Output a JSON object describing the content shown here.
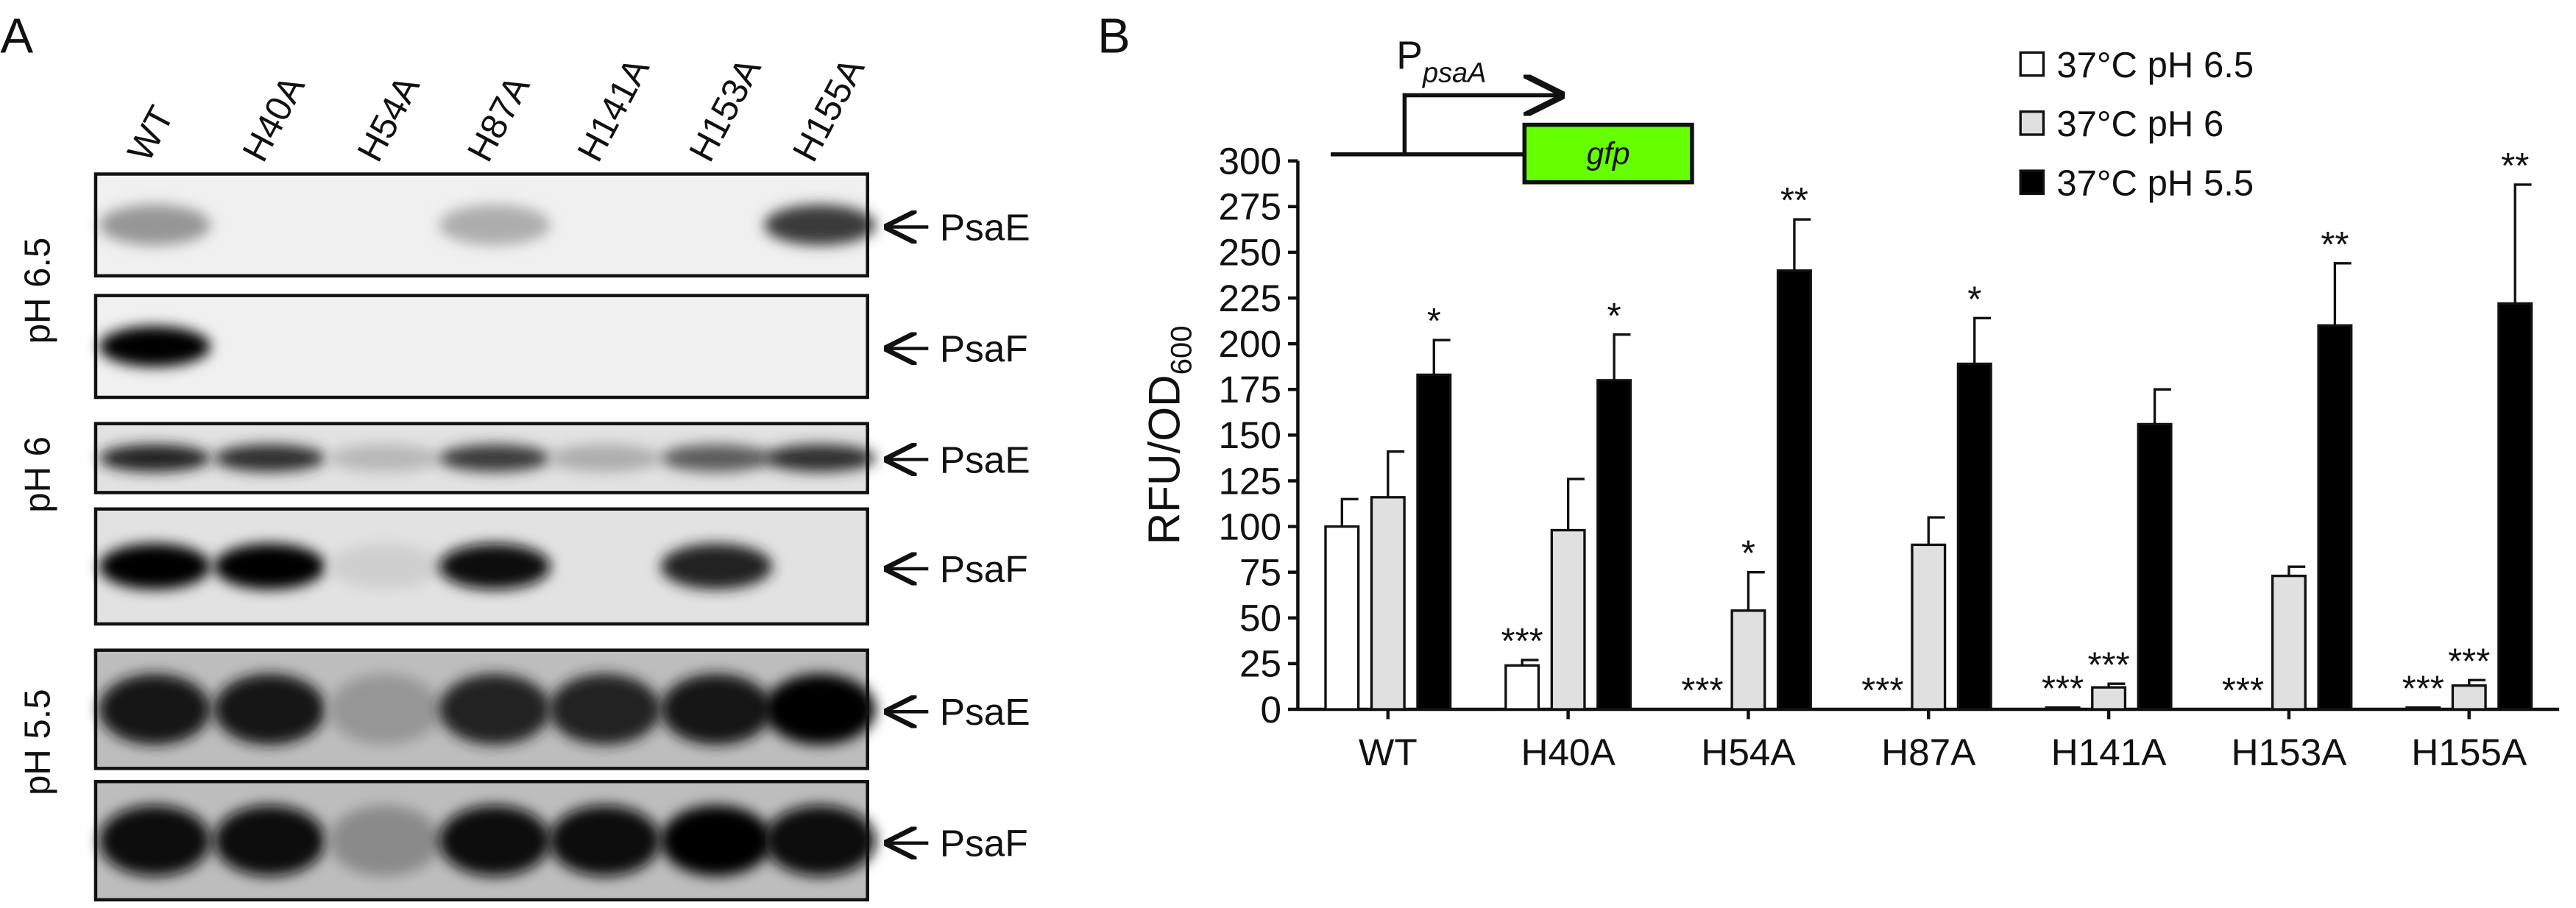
{
  "panel_a": {
    "label": "A",
    "lanes": [
      "WT",
      "H40A",
      "H54A",
      "H87A",
      "H141A",
      "H153A",
      "H155A"
    ],
    "conditions": [
      "pH 6.5",
      "pH 6",
      "pH 5.5"
    ],
    "bands": [
      "PsaE",
      "PsaF",
      "PsaE",
      "PsaF",
      "PsaE",
      "PsaF"
    ]
  },
  "panel_b": {
    "label": "B",
    "diagram": {
      "promoter": "P",
      "promoter_sub": "psaA",
      "gene": "gfp"
    }
  },
  "chart_data": {
    "type": "bar",
    "ylabel": "RFU/OD",
    "ylabel_sub": "600",
    "categories": [
      "WT",
      "H40A",
      "H54A",
      "H87A",
      "H141A",
      "H153A",
      "H155A"
    ],
    "series": [
      {
        "name": "37°C pH 6.5",
        "color": "#ffffff",
        "values": [
          100,
          24,
          0,
          0,
          1,
          0,
          1
        ],
        "errors": [
          15,
          3,
          null,
          null,
          null,
          null,
          null
        ],
        "significance": [
          null,
          "***",
          "***",
          "***",
          "***",
          "***",
          "***"
        ]
      },
      {
        "name": "37°C pH 6",
        "color": "#e0e0e0",
        "values": [
          116,
          98,
          54,
          90,
          12,
          73,
          13
        ],
        "errors": [
          25,
          28,
          21,
          15,
          2,
          5,
          3
        ],
        "significance": [
          null,
          null,
          "*",
          null,
          "***",
          null,
          "***"
        ]
      },
      {
        "name": "37°C pH 5.5",
        "color": "#000000",
        "values": [
          183,
          180,
          240,
          189,
          156,
          210,
          222
        ],
        "errors": [
          19,
          25,
          28,
          25,
          19,
          34,
          65
        ],
        "significance": [
          "*",
          "*",
          "**",
          "*",
          null,
          "**",
          "**"
        ]
      }
    ],
    "ylim": [
      0,
      300
    ],
    "yticks": [
      0,
      25,
      50,
      75,
      100,
      125,
      150,
      175,
      200,
      225,
      250,
      275,
      300
    ],
    "legend": "upper right"
  }
}
